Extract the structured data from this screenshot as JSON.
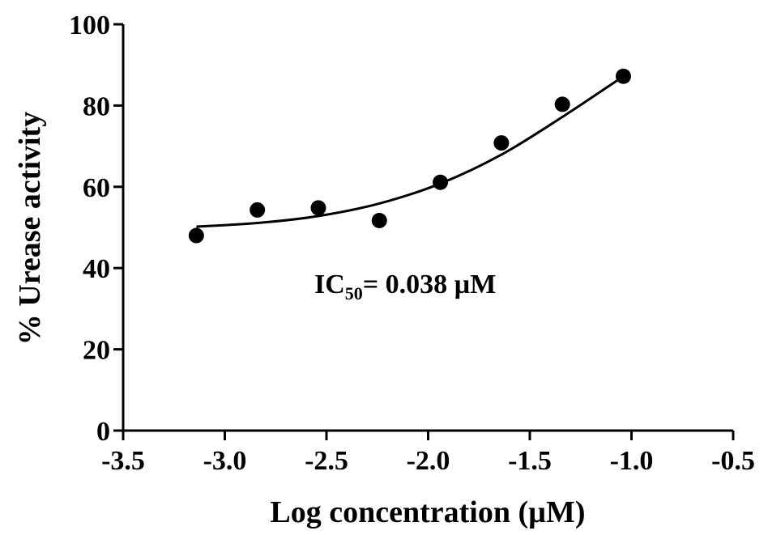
{
  "chart_data": {
    "type": "scatter",
    "xlabel": "Log concentration (µM)",
    "ylabel": "% Urease activity",
    "xlim": [
      -3.5,
      -0.5
    ],
    "ylim": [
      0,
      100
    ],
    "x_ticks": [
      -3.5,
      -3.0,
      -2.5,
      -2.0,
      -1.5,
      -1.0,
      -0.5
    ],
    "x_tick_labels": [
      "-3.5",
      "-3.0",
      "-2.5",
      "-2.0",
      "-1.5",
      "-1.0",
      "-0.5"
    ],
    "y_ticks": [
      0,
      20,
      40,
      60,
      80,
      100
    ],
    "y_tick_labels": [
      "0",
      "20",
      "40",
      "60",
      "80",
      "100"
    ],
    "grid": false,
    "series": [
      {
        "points": [
          {
            "x": -3.14,
            "y": 48
          },
          {
            "x": -2.84,
            "y": 54.3
          },
          {
            "x": -2.54,
            "y": 54.8
          },
          {
            "x": -2.24,
            "y": 51.7
          },
          {
            "x": -1.94,
            "y": 61.1
          },
          {
            "x": -1.64,
            "y": 70.8
          },
          {
            "x": -1.34,
            "y": 80.3
          },
          {
            "x": -1.04,
            "y": 87.2
          }
        ],
        "fit_curve": {
          "type": "sigmoidal",
          "x": [
            -3.14,
            -2.84,
            -2.54,
            -2.24,
            -1.94,
            -1.64,
            -1.34,
            -1.04
          ],
          "y": [
            50.2,
            51.1,
            52.8,
            55.9,
            60.8,
            67.9,
            77.2,
            87.2
          ]
        },
        "color": "#000000"
      }
    ],
    "annotation": {
      "prefix": "IC",
      "subscript": "50",
      "suffix": "= 0.038 µM"
    }
  }
}
